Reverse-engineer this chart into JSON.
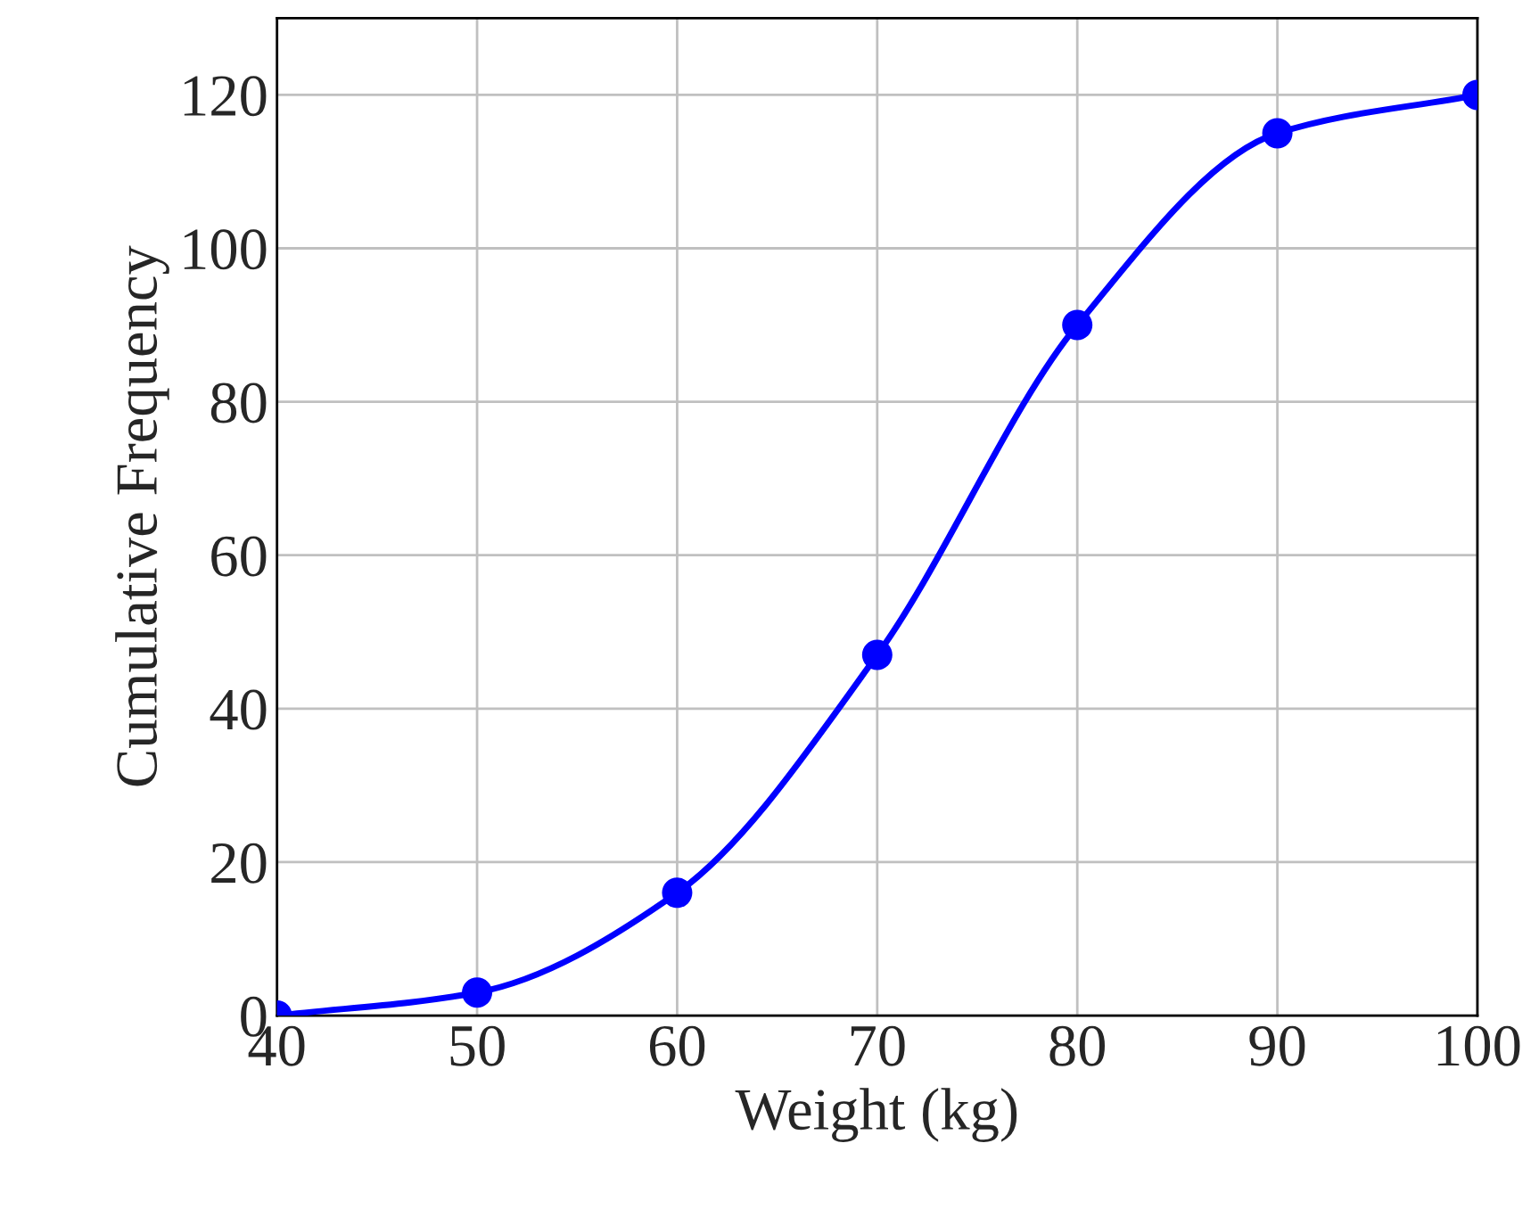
{
  "chart_data": {
    "type": "line",
    "xlabel": "Weight (kg)",
    "ylabel": "Cumulative Frequency",
    "x": [
      40,
      50,
      60,
      70,
      80,
      90,
      100
    ],
    "series": [
      {
        "color": "#0000ff",
        "values": [
          0,
          3,
          16,
          47,
          90,
          115,
          120
        ]
      }
    ],
    "xlim": [
      40,
      100
    ],
    "ylim": [
      0,
      130
    ],
    "xticks": [
      40,
      50,
      60,
      70,
      80,
      90,
      100
    ],
    "yticks": [
      0,
      20,
      40,
      60,
      80,
      100,
      120
    ],
    "grid": true,
    "marker": "circle",
    "line_style": "solid"
  }
}
